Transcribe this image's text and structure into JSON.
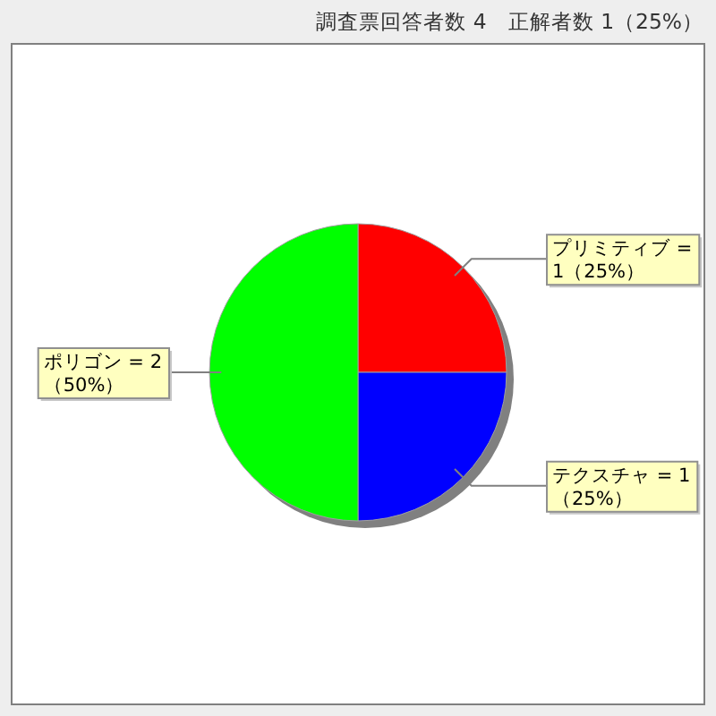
{
  "chart_data": {
    "type": "pie",
    "title": "調査票回答者数 4　正解者数 1（25%）",
    "categories": [
      "プリミティブ",
      "テクスチャ",
      "ポリゴン"
    ],
    "values": [
      1,
      1,
      2
    ],
    "colors": [
      "#ff0000",
      "#0000ff",
      "#00ff00"
    ],
    "value_labels": [
      "= 1（25%）",
      "= 1（25%）",
      "= 2（50%）"
    ]
  }
}
